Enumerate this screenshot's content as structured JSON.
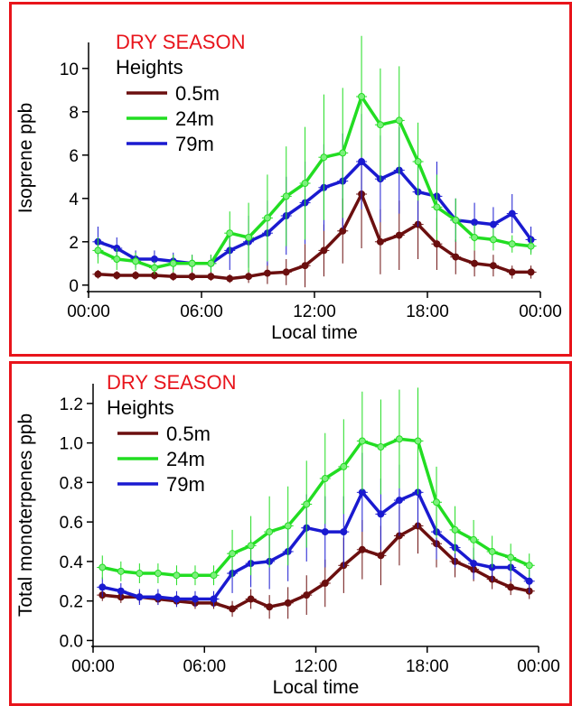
{
  "colors": {
    "frame": "#e8141b",
    "title": "#e8141b",
    "h05": "#6b0f0f",
    "h24": "#22dd22",
    "h79": "#1a1ad0",
    "h24_marker": "#7cf07c"
  },
  "chart_data": [
    {
      "type": "line",
      "title": "DRY SEASON",
      "xlabel": "Local time",
      "ylabel": "Isoprene ppb",
      "xlim": [
        0,
        24
      ],
      "ylim": [
        -0.3,
        11.2
      ],
      "x_ticks": [
        0,
        6,
        12,
        18,
        24
      ],
      "x_tick_labels": [
        "00:00",
        "06:00",
        "12:00",
        "18:00",
        "00:00"
      ],
      "y_ticks": [
        0,
        2,
        4,
        6,
        8,
        10
      ],
      "y_tick_labels": [
        "0",
        "2",
        "4",
        "6",
        "8",
        "10"
      ],
      "legend": {
        "title": "Heights",
        "placement": "top-left"
      },
      "x": [
        0.5,
        1.5,
        2.5,
        3.5,
        4.5,
        5.5,
        6.5,
        7.5,
        8.5,
        9.5,
        10.5,
        11.5,
        12.5,
        13.5,
        14.5,
        15.5,
        16.5,
        17.5,
        18.5,
        19.5,
        20.5,
        21.5,
        22.5,
        23.5
      ],
      "series": [
        {
          "name": "0.5m",
          "color_key": "h05",
          "values": [
            0.5,
            0.45,
            0.45,
            0.45,
            0.4,
            0.4,
            0.4,
            0.3,
            0.4,
            0.55,
            0.6,
            0.9,
            1.6,
            2.5,
            4.2,
            2.0,
            2.3,
            2.8,
            1.9,
            1.3,
            1.0,
            0.9,
            0.6,
            0.6
          ],
          "err": [
            0.2,
            0.2,
            0.2,
            0.2,
            0.2,
            0.2,
            0.2,
            0.2,
            0.3,
            0.5,
            0.6,
            1.0,
            1.2,
            1.5,
            2.5,
            1.5,
            1.6,
            1.6,
            1.2,
            0.8,
            0.6,
            0.5,
            0.3,
            0.3
          ]
        },
        {
          "name": "24m",
          "color_key": "h24",
          "values": [
            1.6,
            1.2,
            1.1,
            0.8,
            1.0,
            1.0,
            1.0,
            2.4,
            2.2,
            3.1,
            4.1,
            4.7,
            5.9,
            6.1,
            8.7,
            7.4,
            7.6,
            5.7,
            3.6,
            3.0,
            2.2,
            2.1,
            1.9,
            1.8
          ],
          "err": [
            0.6,
            0.5,
            0.4,
            0.3,
            0.4,
            0.4,
            0.4,
            1.0,
            1.6,
            2.0,
            2.3,
            2.6,
            2.9,
            3.0,
            2.8,
            2.6,
            2.5,
            1.8,
            1.5,
            1.0,
            0.6,
            0.5,
            0.4,
            0.4
          ]
        },
        {
          "name": "79m",
          "color_key": "h79",
          "values": [
            2.0,
            1.7,
            1.2,
            1.2,
            1.1,
            1.0,
            1.0,
            1.6,
            2.0,
            2.4,
            3.2,
            3.8,
            4.5,
            4.8,
            5.7,
            4.9,
            5.3,
            4.3,
            4.1,
            3.0,
            2.9,
            2.8,
            3.3,
            2.1
          ],
          "err": [
            0.7,
            0.5,
            0.4,
            0.4,
            0.4,
            0.4,
            0.4,
            0.9,
            1.2,
            1.5,
            1.8,
            1.9,
            2.0,
            2.2,
            2.2,
            2.0,
            2.0,
            1.6,
            1.6,
            1.0,
            0.9,
            0.8,
            0.9,
            0.6
          ]
        }
      ]
    },
    {
      "type": "line",
      "title": "DRY SEASON",
      "xlabel": "Local time",
      "ylabel": "Total monoterpenes ppb",
      "xlim": [
        0,
        24
      ],
      "ylim": [
        -0.03,
        1.3
      ],
      "x_ticks": [
        0,
        6,
        12,
        18,
        24
      ],
      "x_tick_labels": [
        "00:00",
        "06:00",
        "12:00",
        "18:00",
        "00:00"
      ],
      "y_ticks": [
        0.0,
        0.2,
        0.4,
        0.6,
        0.8,
        1.0,
        1.2
      ],
      "y_tick_labels": [
        "0.0",
        "0.2",
        "0.4",
        "0.6",
        "0.8",
        "1.0",
        "1.2"
      ],
      "legend": {
        "title": "Heights",
        "placement": "top-left"
      },
      "x": [
        0.5,
        1.5,
        2.5,
        3.5,
        4.5,
        5.5,
        6.5,
        7.5,
        8.5,
        9.5,
        10.5,
        11.5,
        12.5,
        13.5,
        14.5,
        15.5,
        16.5,
        17.5,
        18.5,
        19.5,
        20.5,
        21.5,
        22.5,
        23.5
      ],
      "series": [
        {
          "name": "0.5m",
          "color_key": "h05",
          "values": [
            0.23,
            0.22,
            0.22,
            0.21,
            0.2,
            0.19,
            0.19,
            0.16,
            0.21,
            0.17,
            0.19,
            0.23,
            0.29,
            0.38,
            0.46,
            0.43,
            0.53,
            0.58,
            0.49,
            0.4,
            0.36,
            0.31,
            0.27,
            0.25
          ],
          "err": [
            0.03,
            0.03,
            0.03,
            0.03,
            0.03,
            0.03,
            0.03,
            0.04,
            0.05,
            0.06,
            0.08,
            0.1,
            0.12,
            0.14,
            0.15,
            0.15,
            0.15,
            0.14,
            0.12,
            0.08,
            0.06,
            0.05,
            0.04,
            0.04
          ]
        },
        {
          "name": "24m",
          "color_key": "h24",
          "values": [
            0.37,
            0.35,
            0.34,
            0.34,
            0.33,
            0.33,
            0.33,
            0.44,
            0.48,
            0.55,
            0.58,
            0.69,
            0.82,
            0.88,
            1.01,
            0.98,
            1.02,
            1.01,
            0.7,
            0.56,
            0.51,
            0.45,
            0.42,
            0.38
          ],
          "err": [
            0.06,
            0.05,
            0.05,
            0.05,
            0.05,
            0.05,
            0.05,
            0.12,
            0.15,
            0.18,
            0.2,
            0.22,
            0.23,
            0.24,
            0.25,
            0.24,
            0.25,
            0.27,
            0.18,
            0.12,
            0.1,
            0.08,
            0.07,
            0.06
          ]
        },
        {
          "name": "79m",
          "color_key": "h79",
          "values": [
            0.27,
            0.25,
            0.22,
            0.22,
            0.21,
            0.21,
            0.21,
            0.34,
            0.39,
            0.4,
            0.45,
            0.57,
            0.55,
            0.55,
            0.75,
            0.64,
            0.71,
            0.75,
            0.55,
            0.47,
            0.39,
            0.37,
            0.37,
            0.3
          ],
          "err": [
            0.05,
            0.04,
            0.04,
            0.04,
            0.04,
            0.04,
            0.04,
            0.1,
            0.12,
            0.14,
            0.15,
            0.17,
            0.18,
            0.18,
            0.2,
            0.18,
            0.18,
            0.18,
            0.14,
            0.1,
            0.08,
            0.07,
            0.07,
            0.06
          ]
        }
      ]
    }
  ]
}
